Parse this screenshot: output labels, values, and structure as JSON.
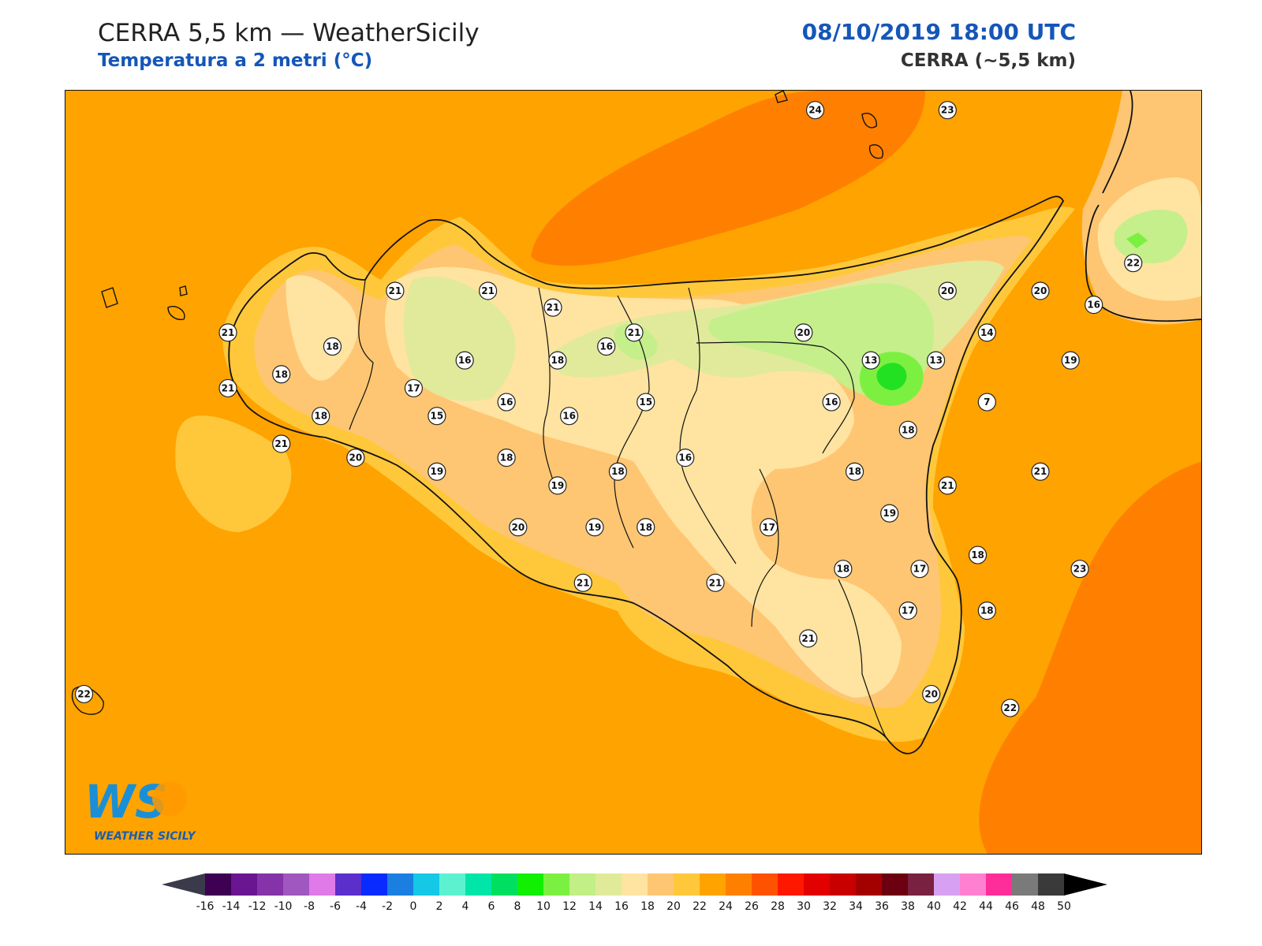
{
  "header": {
    "title": "CERRA 5,5 km — WeatherSicily",
    "subtitle": "Temperatura a 2 metri (°C)",
    "datetime": "08/10/2019 18:00 UTC",
    "model": "CERRA (~5,5 km)"
  },
  "logo": {
    "caption": "WEATHER SICILY",
    "mark": "WS"
  },
  "colors": {
    "sea_warm": "#ffa300",
    "sea_hot": "#ff8000",
    "t22": "#ffc83a",
    "t20": "#fec672",
    "t18": "#ffe3a0",
    "t16": "#e0ea9a",
    "t14": "#c4ef8a",
    "t8": "#22e022",
    "coast": "#111111"
  },
  "colorbar": {
    "ticks": [
      "-16",
      "-14",
      "-12",
      "-10",
      "-8",
      "-6",
      "-4",
      "-2",
      "0",
      "2",
      "4",
      "6",
      "8",
      "10",
      "12",
      "14",
      "16",
      "18",
      "20",
      "22",
      "24",
      "26",
      "28",
      "30",
      "32",
      "34",
      "36",
      "38",
      "40",
      "42",
      "44",
      "46",
      "48",
      "50"
    ],
    "colors": [
      "#3d0052",
      "#6a1592",
      "#8434a8",
      "#a057bf",
      "#e07ae8",
      "#5a2fcc",
      "#0a2bff",
      "#1a7fe0",
      "#14c8e6",
      "#5cf2d0",
      "#00e5a8",
      "#00e060",
      "#10f000",
      "#7cf040",
      "#c2ef86",
      "#e0eb9a",
      "#ffe3a0",
      "#fec672",
      "#ffc83a",
      "#ffa300",
      "#ff8000",
      "#ff5200",
      "#ff1800",
      "#e30000",
      "#c80000",
      "#a30000",
      "#6d0010",
      "#7a2040",
      "#d8a0f0",
      "#ff80d0",
      "#ff2d9a",
      "#7a7a7a",
      "#3a3a3a"
    ]
  },
  "stations": [
    {
      "value": "24",
      "lon": 15.08,
      "lat": 38.93
    },
    {
      "value": "23",
      "lon": 15.65,
      "lat": 38.93
    },
    {
      "value": "21",
      "lon": 13.27,
      "lat": 38.28
    },
    {
      "value": "21",
      "lon": 13.67,
      "lat": 38.28
    },
    {
      "value": "21",
      "lon": 13.95,
      "lat": 38.22
    },
    {
      "value": "21",
      "lon": 12.55,
      "lat": 38.13
    },
    {
      "value": "21",
      "lon": 14.3,
      "lat": 38.13
    },
    {
      "value": "20",
      "lon": 15.03,
      "lat": 38.13
    },
    {
      "value": "20",
      "lon": 15.65,
      "lat": 38.28
    },
    {
      "value": "20",
      "lon": 16.05,
      "lat": 38.28
    },
    {
      "value": "22",
      "lon": 16.45,
      "lat": 38.38
    },
    {
      "value": "16",
      "lon": 16.28,
      "lat": 38.23
    },
    {
      "value": "14",
      "lon": 15.82,
      "lat": 38.13
    },
    {
      "value": "18",
      "lon": 13.0,
      "lat": 38.08
    },
    {
      "value": "16",
      "lon": 13.57,
      "lat": 38.03
    },
    {
      "value": "18",
      "lon": 13.97,
      "lat": 38.03
    },
    {
      "value": "16",
      "lon": 14.18,
      "lat": 38.08
    },
    {
      "value": "13",
      "lon": 15.32,
      "lat": 38.03
    },
    {
      "value": "13",
      "lon": 15.6,
      "lat": 38.03
    },
    {
      "value": "19",
      "lon": 16.18,
      "lat": 38.03
    },
    {
      "value": "18",
      "lon": 12.78,
      "lat": 37.98
    },
    {
      "value": "21",
      "lon": 12.55,
      "lat": 37.93
    },
    {
      "value": "17",
      "lon": 13.35,
      "lat": 37.93
    },
    {
      "value": "16",
      "lon": 13.75,
      "lat": 37.88
    },
    {
      "value": "15",
      "lon": 14.35,
      "lat": 37.88
    },
    {
      "value": "16",
      "lon": 15.15,
      "lat": 37.88
    },
    {
      "value": "7",
      "lon": 15.82,
      "lat": 37.88
    },
    {
      "value": "18",
      "lon": 12.95,
      "lat": 37.83
    },
    {
      "value": "15",
      "lon": 13.45,
      "lat": 37.83
    },
    {
      "value": "16",
      "lon": 14.02,
      "lat": 37.83
    },
    {
      "value": "18",
      "lon": 15.48,
      "lat": 37.78
    },
    {
      "value": "21",
      "lon": 12.78,
      "lat": 37.73
    },
    {
      "value": "20",
      "lon": 13.1,
      "lat": 37.68
    },
    {
      "value": "18",
      "lon": 13.75,
      "lat": 37.68
    },
    {
      "value": "16",
      "lon": 14.52,
      "lat": 37.68
    },
    {
      "value": "19",
      "lon": 13.45,
      "lat": 37.63
    },
    {
      "value": "18",
      "lon": 14.23,
      "lat": 37.63
    },
    {
      "value": "18",
      "lon": 15.25,
      "lat": 37.63
    },
    {
      "value": "21",
      "lon": 16.05,
      "lat": 37.63
    },
    {
      "value": "19",
      "lon": 13.97,
      "lat": 37.58
    },
    {
      "value": "21",
      "lon": 15.65,
      "lat": 37.58
    },
    {
      "value": "19",
      "lon": 15.4,
      "lat": 37.48
    },
    {
      "value": "20",
      "lon": 13.8,
      "lat": 37.43
    },
    {
      "value": "19",
      "lon": 14.13,
      "lat": 37.43
    },
    {
      "value": "18",
      "lon": 14.35,
      "lat": 37.43
    },
    {
      "value": "17",
      "lon": 14.88,
      "lat": 37.43
    },
    {
      "value": "18",
      "lon": 15.78,
      "lat": 37.33
    },
    {
      "value": "18",
      "lon": 15.2,
      "lat": 37.28
    },
    {
      "value": "17",
      "lon": 15.53,
      "lat": 37.28
    },
    {
      "value": "23",
      "lon": 16.22,
      "lat": 37.28
    },
    {
      "value": "21",
      "lon": 14.08,
      "lat": 37.23
    },
    {
      "value": "21",
      "lon": 14.65,
      "lat": 37.23
    },
    {
      "value": "17",
      "lon": 15.48,
      "lat": 37.13
    },
    {
      "value": "18",
      "lon": 15.82,
      "lat": 37.13
    },
    {
      "value": "21",
      "lon": 15.05,
      "lat": 37.03
    },
    {
      "value": "22",
      "lon": 11.93,
      "lat": 36.83
    },
    {
      "value": "20",
      "lon": 15.58,
      "lat": 36.83
    },
    {
      "value": "22",
      "lon": 15.92,
      "lat": 36.78
    }
  ]
}
